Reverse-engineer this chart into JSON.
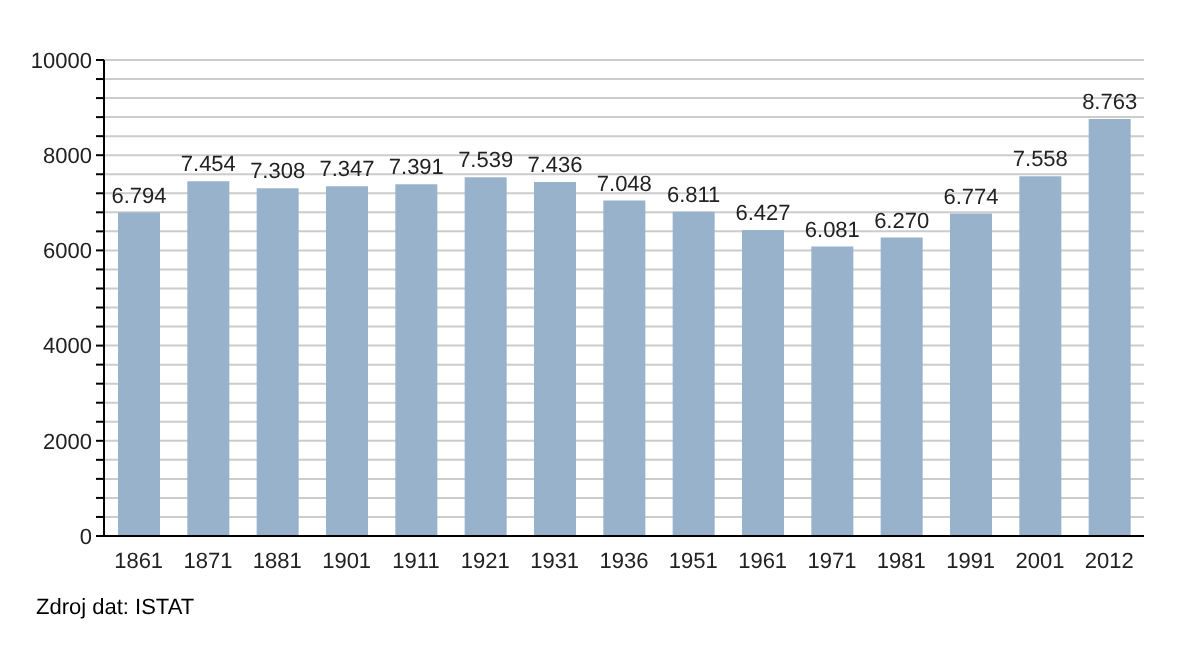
{
  "chart_data": {
    "type": "bar",
    "categories": [
      "1861",
      "1871",
      "1881",
      "1901",
      "1911",
      "1921",
      "1931",
      "1936",
      "1951",
      "1961",
      "1971",
      "1981",
      "1991",
      "2001",
      "2012"
    ],
    "values": [
      6794,
      7454,
      7308,
      7347,
      7391,
      7539,
      7436,
      7048,
      6811,
      6427,
      6081,
      6270,
      6774,
      7558,
      8763
    ],
    "value_labels": [
      "6.794",
      "7.454",
      "7.308",
      "7.347",
      "7.391",
      "7.539",
      "7.436",
      "7.048",
      "6.811",
      "6.427",
      "6.081",
      "6.270",
      "6.774",
      "7.558",
      "8.763"
    ],
    "color": "#98b2cc",
    "ylim": [
      0,
      10000
    ],
    "yticks": [
      0,
      {
        "value": 400,
        "label": null
      },
      {
        "value": 800,
        "label": null
      },
      {
        "value": 1200,
        "label": null
      },
      {
        "value": 1600,
        "label": null
      },
      2000,
      {
        "value": 2400,
        "label": null
      },
      {
        "value": 2800,
        "label": null
      },
      {
        "value": 3200,
        "label": null
      },
      {
        "value": 3600,
        "label": null
      },
      4000,
      {
        "value": 4400,
        "label": null
      },
      {
        "value": 4800,
        "label": null
      },
      {
        "value": 5200,
        "label": null
      },
      {
        "value": 5600,
        "label": null
      },
      6000,
      {
        "value": 6400,
        "label": null
      },
      {
        "value": 6800,
        "label": null
      },
      {
        "value": 7200,
        "label": null
      },
      {
        "value": 7600,
        "label": null
      },
      8000,
      {
        "value": 8400,
        "label": null
      },
      {
        "value": 8800,
        "label": null
      },
      {
        "value": 9200,
        "label": null
      },
      {
        "value": 9600,
        "label": null
      },
      10000
    ],
    "grid": "y",
    "legend": false,
    "annotations": [
      "Zdroj dat: ISTAT"
    ]
  }
}
